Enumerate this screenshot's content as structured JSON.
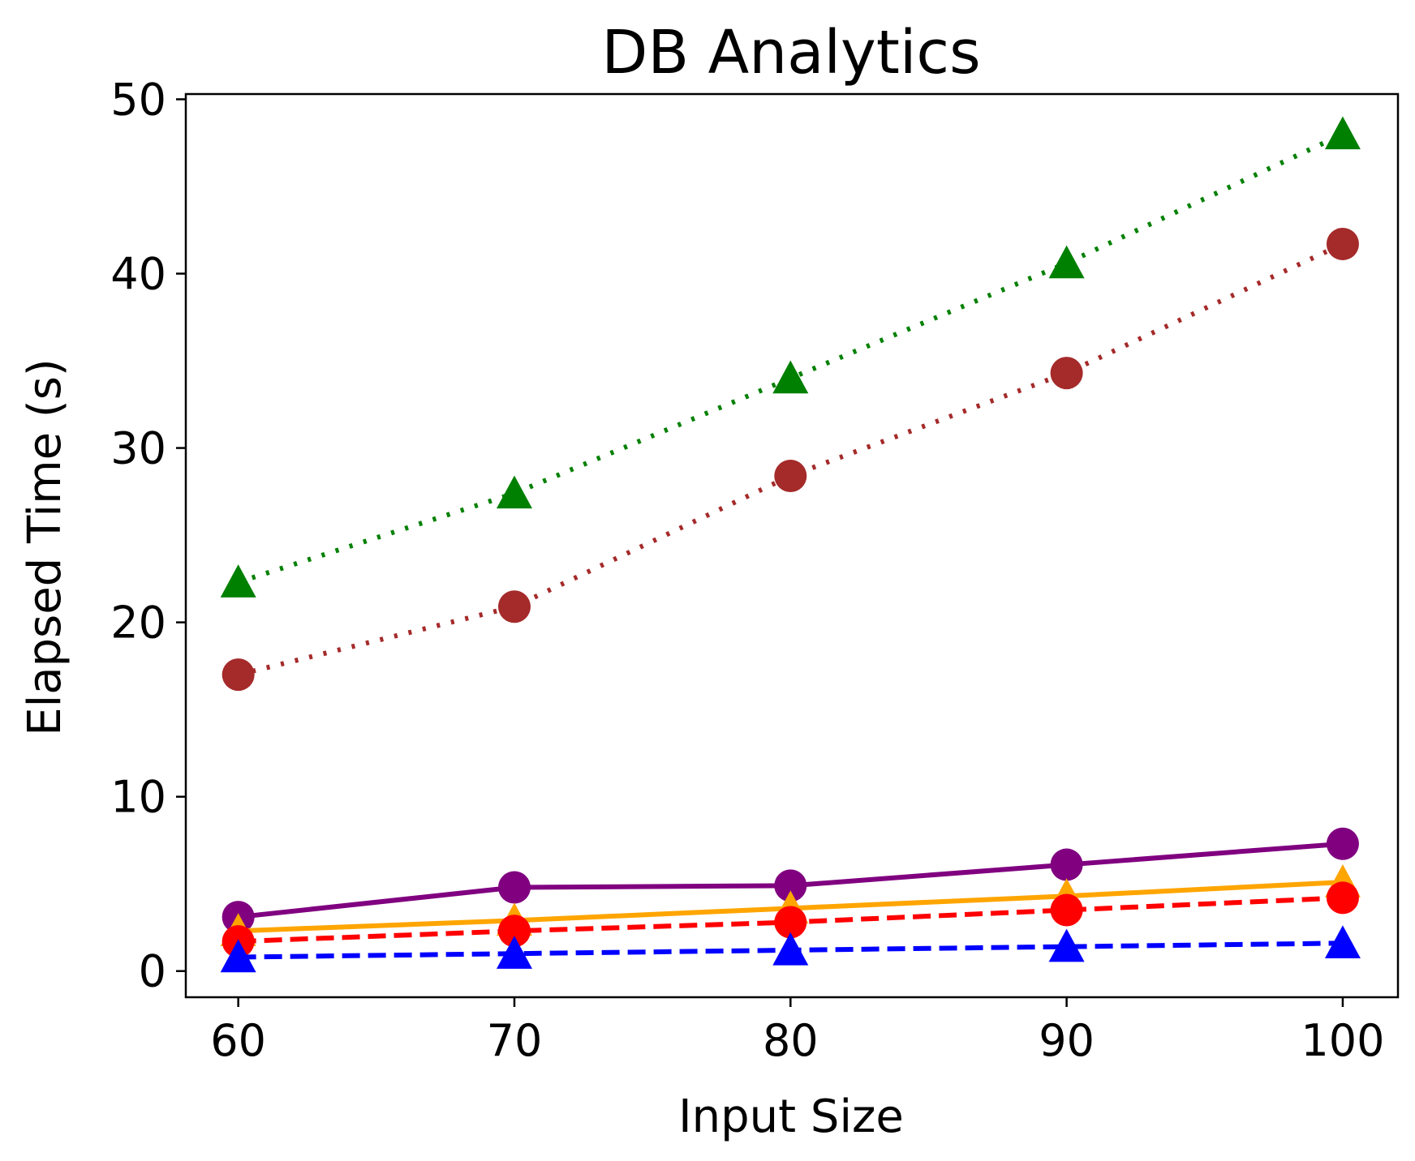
{
  "chart_data": {
    "type": "line",
    "title": "DB Analytics",
    "xlabel": "Input Size",
    "ylabel": "Elapsed Time (s)",
    "x": [
      60,
      70,
      80,
      90,
      100
    ],
    "xlim": [
      58.1,
      102.0
    ],
    "ylim": [
      -1.5,
      50.3
    ],
    "xticks": [
      60,
      70,
      80,
      90,
      100
    ],
    "yticks": [
      0,
      10,
      20,
      30,
      40,
      50
    ],
    "grid": false,
    "series": [
      {
        "values": [
          22.3,
          27.4,
          34.0,
          40.6,
          48.0
        ],
        "color": "#008000",
        "linestyle": "dotted",
        "marker": "triangle"
      },
      {
        "values": [
          17.0,
          20.9,
          28.4,
          34.3,
          41.7
        ],
        "color": "#a52a2a",
        "linestyle": "dotted",
        "marker": "circle"
      },
      {
        "values": [
          3.1,
          4.8,
          4.9,
          6.1,
          7.3
        ],
        "color": "#800080",
        "linestyle": "solid",
        "marker": "circle"
      },
      {
        "values": [
          2.3,
          2.9,
          3.6,
          4.3,
          5.1
        ],
        "color": "#ffa500",
        "linestyle": "solid",
        "marker": "triangle"
      },
      {
        "values": [
          1.7,
          2.3,
          2.8,
          3.5,
          4.2
        ],
        "color": "#ff0000",
        "linestyle": "dashed",
        "marker": "circle"
      },
      {
        "values": [
          0.8,
          1.0,
          1.2,
          1.4,
          1.6
        ],
        "color": "#0000ff",
        "linestyle": "dashed",
        "marker": "triangle"
      }
    ]
  }
}
